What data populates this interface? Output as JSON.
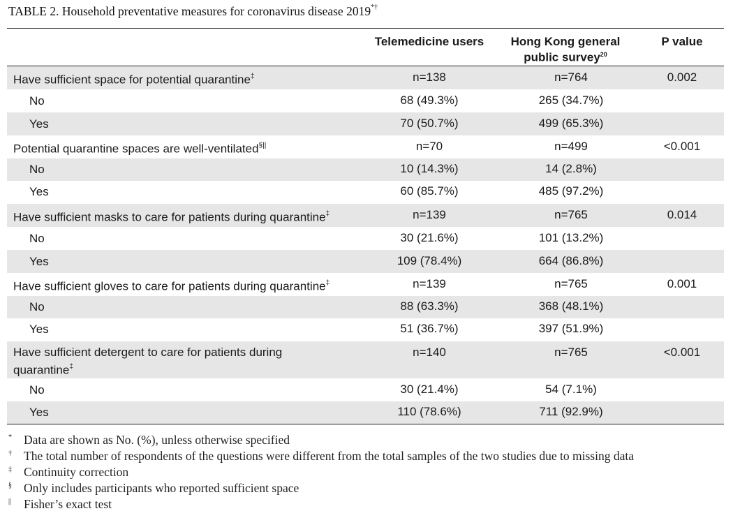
{
  "table": {
    "title": "TABLE 2.  Household preventative measures for coronavirus disease 2019",
    "title_marks": "*†",
    "headers": {
      "col1": "Telemedicine users",
      "col2_line1": "Hong Kong general",
      "col2_line2": "public survey",
      "col2_ref": "20",
      "col3": "P value"
    },
    "rows": [
      {
        "label": "Have sufficient space for potential quarantine",
        "mark": "‡",
        "c1": "n=138",
        "c2": "n=764",
        "c3": "0.002"
      },
      {
        "label": "No",
        "mark": "",
        "c1": "68 (49.3%)",
        "c2": "265 (34.7%)",
        "c3": ""
      },
      {
        "label": "Yes",
        "mark": "",
        "c1": "70 (50.7%)",
        "c2": "499 (65.3%)",
        "c3": ""
      },
      {
        "label": "Potential quarantine spaces are well-ventilated",
        "mark": "§||",
        "c1": "n=70",
        "c2": "n=499",
        "c3": "<0.001"
      },
      {
        "label": "No",
        "mark": "",
        "c1": "10 (14.3%)",
        "c2": "14 (2.8%)",
        "c3": ""
      },
      {
        "label": "Yes",
        "mark": "",
        "c1": "60 (85.7%)",
        "c2": "485 (97.2%)",
        "c3": ""
      },
      {
        "label": "Have sufficient masks to care for patients during quarantine",
        "mark": "‡",
        "c1": "n=139",
        "c2": "n=765",
        "c3": "0.014"
      },
      {
        "label": "No",
        "mark": "",
        "c1": "30 (21.6%)",
        "c2": "101 (13.2%)",
        "c3": ""
      },
      {
        "label": "Yes",
        "mark": "",
        "c1": "109 (78.4%)",
        "c2": "664 (86.8%)",
        "c3": ""
      },
      {
        "label": "Have sufficient gloves to care for patients during quarantine",
        "mark": "‡",
        "c1": "n=139",
        "c2": "n=765",
        "c3": "0.001"
      },
      {
        "label": "No",
        "mark": "",
        "c1": "88 (63.3%)",
        "c2": "368 (48.1%)",
        "c3": ""
      },
      {
        "label": "Yes",
        "mark": "",
        "c1": "51 (36.7%)",
        "c2": "397 (51.9%)",
        "c3": ""
      },
      {
        "label_line1": "Have sufficient detergent to care for patients during",
        "label_line2": "quarantine",
        "mark": "‡",
        "c1": "n=140",
        "c2": "n=765",
        "c3": "<0.001"
      },
      {
        "label": "No",
        "mark": "",
        "c1": "30 (21.4%)",
        "c2": "54 (7.1%)",
        "c3": ""
      },
      {
        "label": "Yes",
        "mark": "",
        "c1": "110 (78.6%)",
        "c2": "711 (92.9%)",
        "c3": ""
      }
    ],
    "footnotes": [
      {
        "mark": "*",
        "text": "Data are shown as No. (%), unless otherwise specified"
      },
      {
        "mark": "†",
        "text": "The total number of respondents of the questions were different from the total samples of the two studies due to missing data"
      },
      {
        "mark": "‡",
        "text": "Continuity correction"
      },
      {
        "mark": "§",
        "text": "Only includes participants who reported sufficient space"
      },
      {
        "mark": "||",
        "text": "Fisher’s exact test"
      }
    ]
  }
}
